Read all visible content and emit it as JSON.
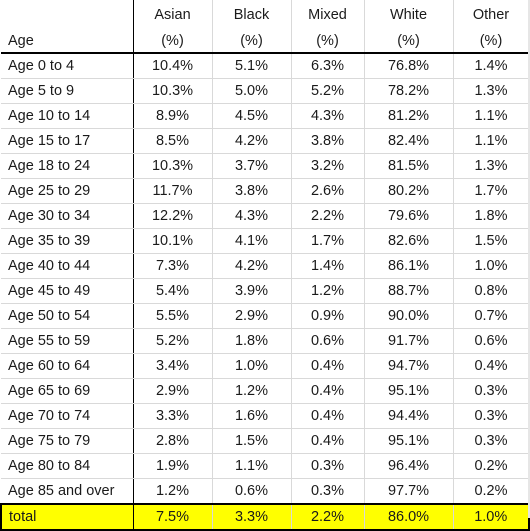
{
  "headers": {
    "row1": [
      "",
      "Asian",
      "Black",
      "Mixed",
      "White",
      "Other"
    ],
    "row2": [
      "Age",
      "(%)",
      "(%)",
      "(%)",
      "(%)",
      "(%)"
    ]
  },
  "rows": [
    {
      "label": "Age 0 to 4",
      "asian": "10.4%",
      "black": "5.1%",
      "mixed": "6.3%",
      "white": "76.8%",
      "other": "1.4%"
    },
    {
      "label": "Age 5 to 9",
      "asian": "10.3%",
      "black": "5.0%",
      "mixed": "5.2%",
      "white": "78.2%",
      "other": "1.3%"
    },
    {
      "label": "Age 10 to 14",
      "asian": "8.9%",
      "black": "4.5%",
      "mixed": "4.3%",
      "white": "81.2%",
      "other": "1.1%"
    },
    {
      "label": "Age 15 to 17",
      "asian": "8.5%",
      "black": "4.2%",
      "mixed": "3.8%",
      "white": "82.4%",
      "other": "1.1%"
    },
    {
      "label": "Age 18 to 24",
      "asian": "10.3%",
      "black": "3.7%",
      "mixed": "3.2%",
      "white": "81.5%",
      "other": "1.3%"
    },
    {
      "label": "Age 25 to 29",
      "asian": "11.7%",
      "black": "3.8%",
      "mixed": "2.6%",
      "white": "80.2%",
      "other": "1.7%"
    },
    {
      "label": "Age 30 to 34",
      "asian": "12.2%",
      "black": "4.3%",
      "mixed": "2.2%",
      "white": "79.6%",
      "other": "1.8%"
    },
    {
      "label": "Age 35 to 39",
      "asian": "10.1%",
      "black": "4.1%",
      "mixed": "1.7%",
      "white": "82.6%",
      "other": "1.5%"
    },
    {
      "label": "Age 40 to 44",
      "asian": "7.3%",
      "black": "4.2%",
      "mixed": "1.4%",
      "white": "86.1%",
      "other": "1.0%"
    },
    {
      "label": "Age 45 to 49",
      "asian": "5.4%",
      "black": "3.9%",
      "mixed": "1.2%",
      "white": "88.7%",
      "other": "0.8%"
    },
    {
      "label": "Age 50 to 54",
      "asian": "5.5%",
      "black": "2.9%",
      "mixed": "0.9%",
      "white": "90.0%",
      "other": "0.7%"
    },
    {
      "label": "Age 55 to 59",
      "asian": "5.2%",
      "black": "1.8%",
      "mixed": "0.6%",
      "white": "91.7%",
      "other": "0.6%"
    },
    {
      "label": "Age 60 to 64",
      "asian": "3.4%",
      "black": "1.0%",
      "mixed": "0.4%",
      "white": "94.7%",
      "other": "0.4%"
    },
    {
      "label": "Age 65 to 69",
      "asian": "2.9%",
      "black": "1.2%",
      "mixed": "0.4%",
      "white": "95.1%",
      "other": "0.3%"
    },
    {
      "label": "Age 70 to 74",
      "asian": "3.3%",
      "black": "1.6%",
      "mixed": "0.4%",
      "white": "94.4%",
      "other": "0.3%"
    },
    {
      "label": "Age 75 to 79",
      "asian": "2.8%",
      "black": "1.5%",
      "mixed": "0.4%",
      "white": "95.1%",
      "other": "0.3%"
    },
    {
      "label": "Age 80 to 84",
      "asian": "1.9%",
      "black": "1.1%",
      "mixed": "0.3%",
      "white": "96.4%",
      "other": "0.2%"
    },
    {
      "label": "Age 85 and over",
      "asian": "1.2%",
      "black": "0.6%",
      "mixed": "0.3%",
      "white": "97.7%",
      "other": "0.2%"
    }
  ],
  "total": {
    "label": "total",
    "asian": "7.5%",
    "black": "3.3%",
    "mixed": "2.2%",
    "white": "86.0%",
    "other": "1.0%"
  },
  "colors": {
    "total_highlight": "#ffff00",
    "gridline": "#d9d9d9"
  }
}
